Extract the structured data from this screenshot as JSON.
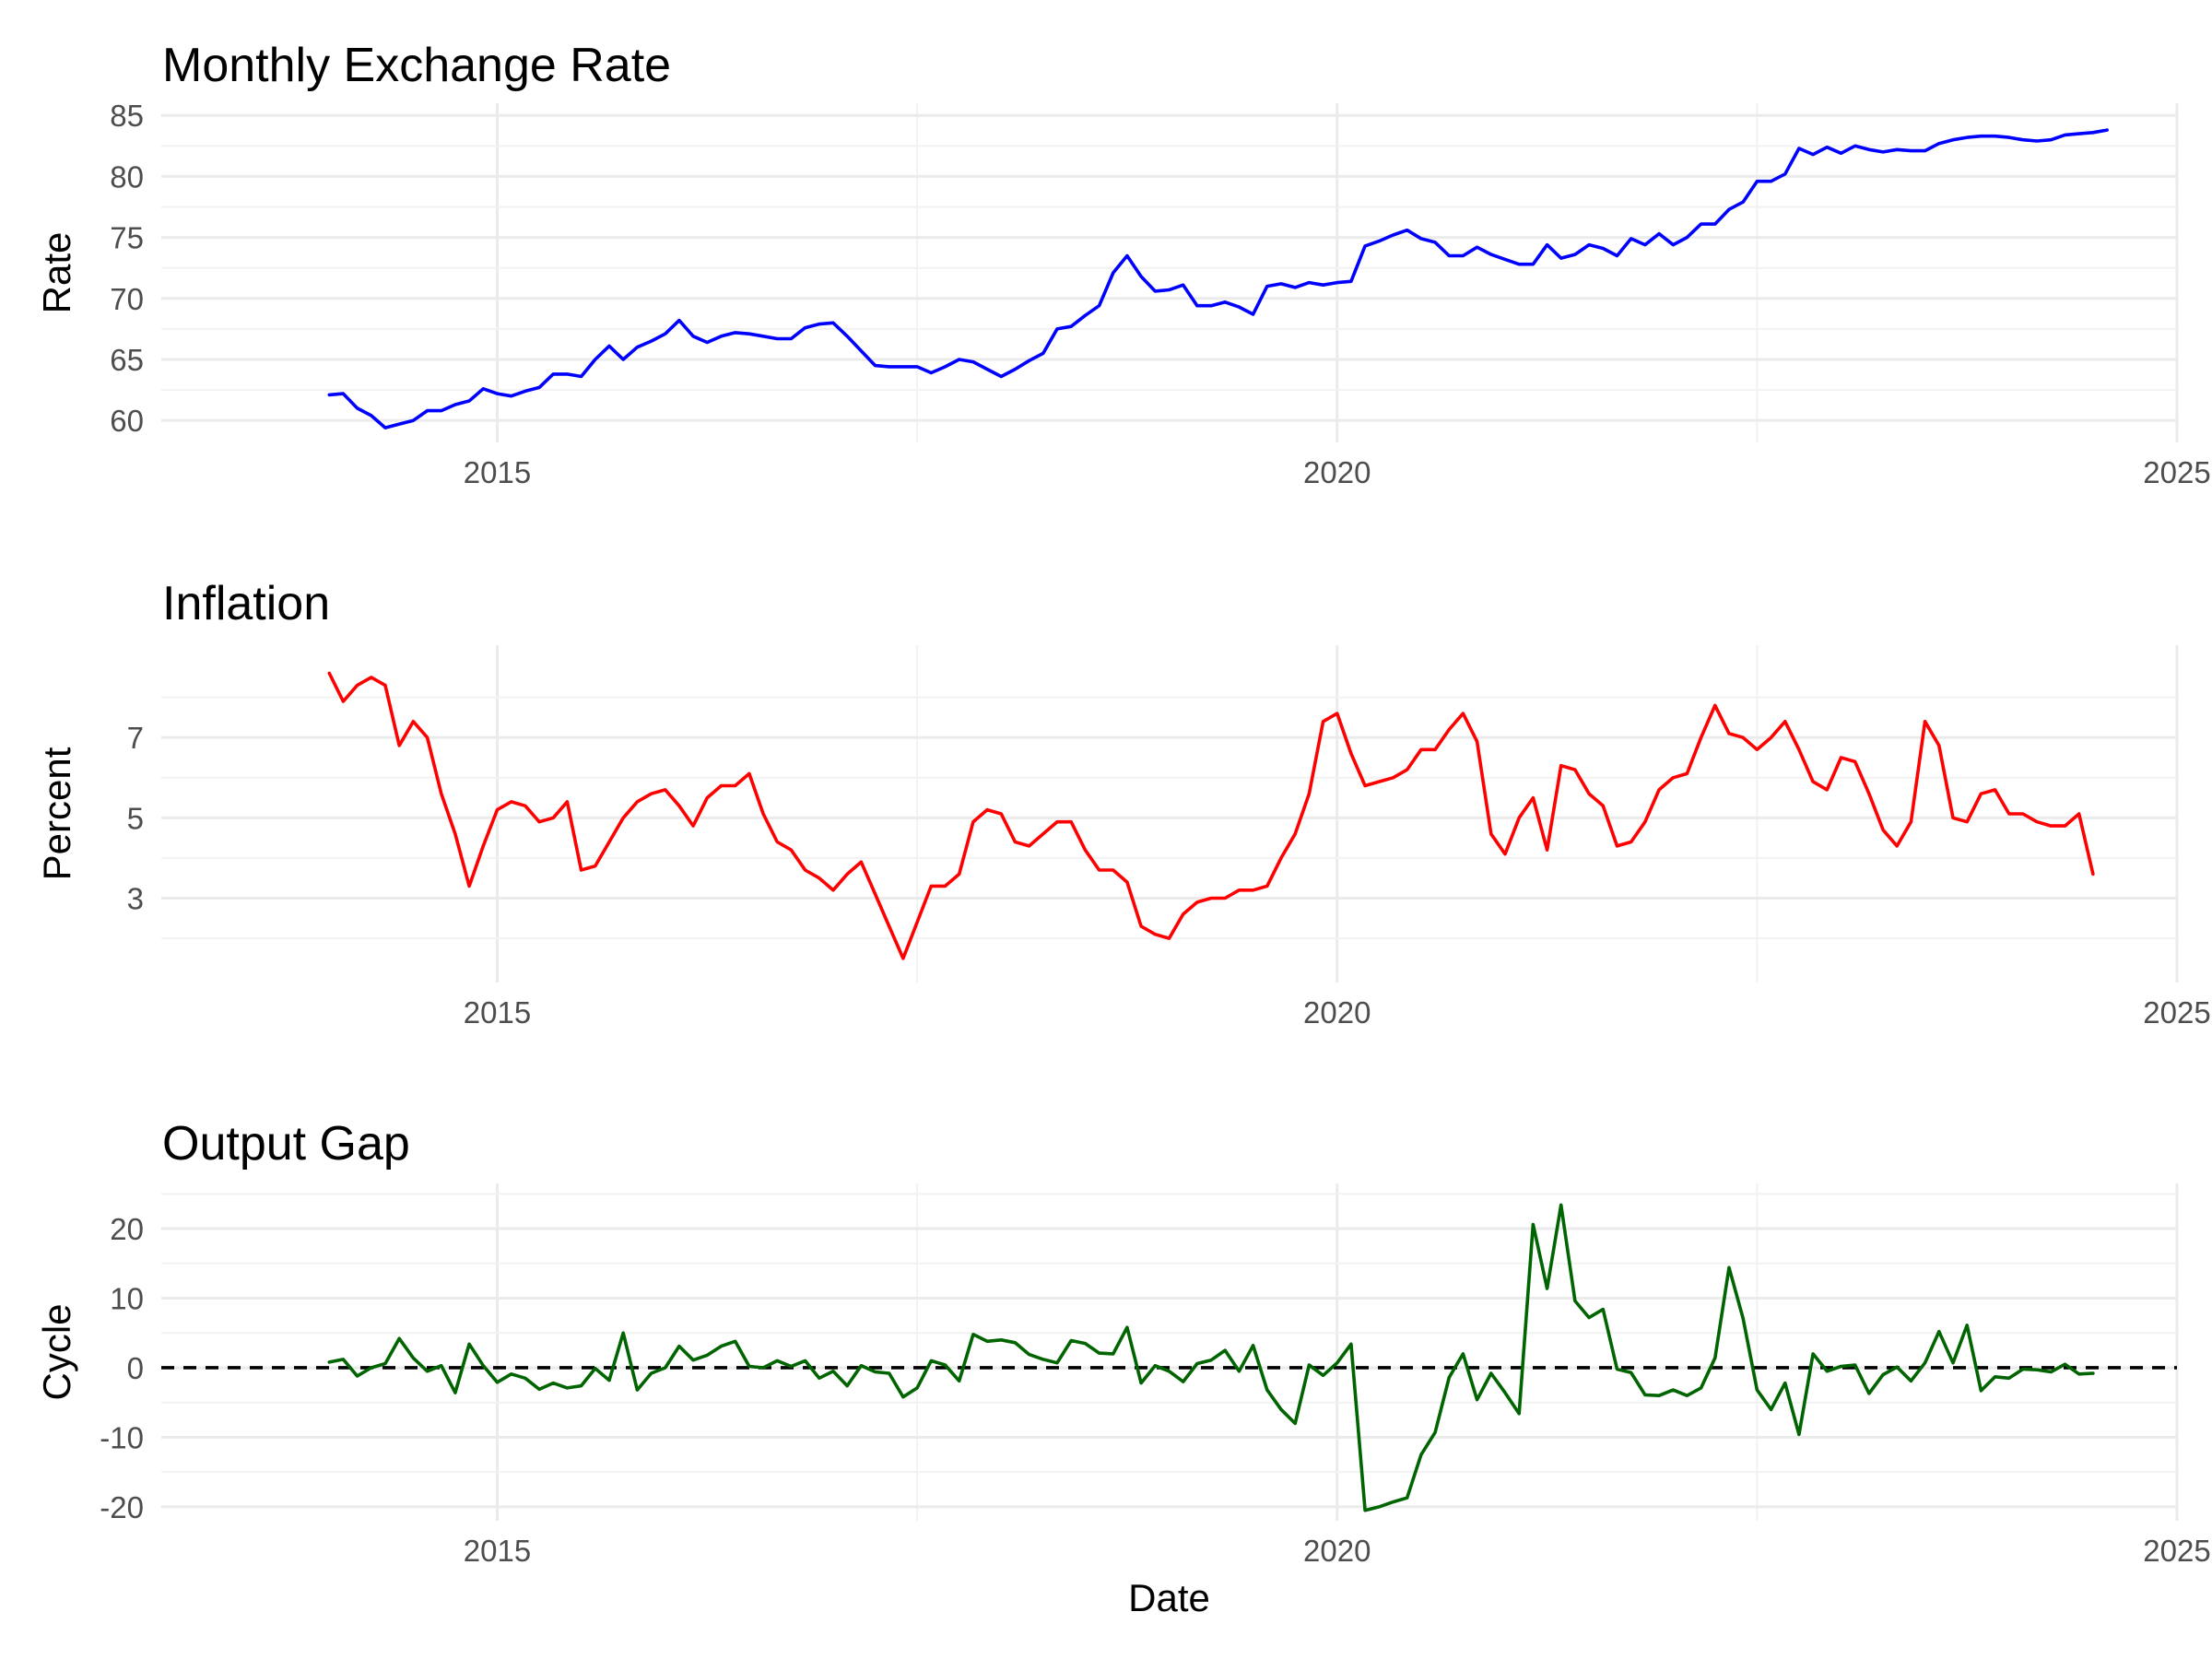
{
  "chart_data": [
    {
      "type": "line",
      "title": "Monthly Exchange Rate",
      "xlabel": "",
      "ylabel": "Rate",
      "xlim": [
        "2013-01-01",
        "2025-01-01"
      ],
      "ylim": [
        58.2,
        86
      ],
      "x_ticks": [
        "2015",
        "2020",
        "2025"
      ],
      "y_ticks": [
        60,
        65,
        70,
        75,
        80,
        85
      ],
      "grid": true,
      "color": "#0000ff",
      "series": [
        {
          "x_start": "2014-01",
          "x_step": "month",
          "values": [
            62.1,
            62.2,
            61.0,
            60.4,
            59.4,
            59.7,
            60.0,
            60.8,
            60.8,
            61.3,
            61.6,
            62.6,
            62.2,
            62.0,
            62.4,
            62.7,
            63.8,
            63.8,
            63.6,
            65.0,
            66.1,
            65.0,
            66.0,
            66.5,
            67.1,
            68.2,
            66.9,
            66.4,
            66.9,
            67.2,
            67.1,
            66.9,
            66.7,
            66.7,
            67.6,
            67.9,
            68.0,
            66.9,
            65.7,
            64.5,
            64.4,
            64.4,
            64.4,
            63.9,
            64.4,
            65.0,
            64.8,
            64.2,
            63.6,
            64.2,
            64.9,
            65.5,
            67.5,
            67.7,
            68.6,
            69.4,
            72.1,
            73.5,
            71.8,
            70.6,
            70.7,
            71.1,
            69.4,
            69.4,
            69.7,
            69.3,
            68.7,
            71.0,
            71.2,
            70.9,
            71.3,
            71.1,
            71.3,
            71.4,
            74.3,
            74.7,
            75.2,
            75.6,
            74.9,
            74.6,
            73.5,
            73.5,
            74.2,
            73.6,
            73.2,
            72.8,
            72.8,
            74.4,
            73.3,
            73.6,
            74.4,
            74.1,
            73.5,
            74.9,
            74.4,
            75.3,
            74.4,
            75.0,
            76.1,
            76.1,
            77.3,
            77.9,
            79.6,
            79.6,
            80.2,
            82.3,
            81.8,
            82.4,
            81.9,
            82.5,
            82.2,
            82.0,
            82.2,
            82.1,
            82.1,
            82.7,
            83.0,
            83.2,
            83.3,
            83.3,
            83.2,
            83.0,
            82.9,
            83.0,
            83.4,
            83.5,
            83.6,
            83.8
          ]
        }
      ]
    },
    {
      "type": "line",
      "title": "Inflation",
      "xlabel": "",
      "ylabel": "Percent",
      "xlim": [
        "2013-01-01",
        "2025-01-01"
      ],
      "ylim": [
        0.9,
        9.3
      ],
      "x_ticks": [
        "2015",
        "2020",
        "2025"
      ],
      "y_ticks": [
        3,
        5,
        7
      ],
      "grid": true,
      "color": "#ff0000",
      "series": [
        {
          "x_start": "2014-01",
          "x_step": "month",
          "values": [
            8.6,
            7.9,
            8.3,
            8.5,
            8.3,
            6.8,
            7.4,
            7.0,
            5.6,
            4.6,
            3.3,
            4.3,
            5.2,
            5.4,
            5.3,
            4.9,
            5.0,
            5.4,
            3.7,
            3.8,
            4.4,
            5.0,
            5.4,
            5.6,
            5.7,
            5.3,
            4.8,
            5.5,
            5.8,
            5.8,
            6.1,
            5.1,
            4.4,
            4.2,
            3.7,
            3.5,
            3.2,
            3.6,
            3.9,
            3.1,
            2.3,
            1.5,
            2.4,
            3.3,
            3.3,
            3.6,
            4.9,
            5.2,
            5.1,
            4.4,
            4.3,
            4.6,
            4.9,
            4.9,
            4.2,
            3.7,
            3.7,
            3.4,
            2.3,
            2.1,
            2.0,
            2.6,
            2.9,
            3.0,
            3.0,
            3.2,
            3.2,
            3.3,
            4.0,
            4.6,
            5.6,
            7.4,
            7.6,
            6.6,
            5.8,
            5.9,
            6.0,
            6.2,
            6.7,
            6.7,
            7.2,
            7.6,
            6.9,
            4.6,
            4.1,
            5.0,
            5.5,
            4.2,
            6.3,
            6.2,
            5.6,
            5.3,
            4.3,
            4.4,
            4.9,
            5.7,
            6.0,
            6.1,
            7.0,
            7.8,
            7.1,
            7.0,
            6.7,
            7.0,
            7.4,
            6.7,
            5.9,
            5.7,
            6.5,
            6.4,
            5.6,
            4.7,
            4.3,
            4.9,
            7.4,
            6.8,
            5.0,
            4.9,
            5.6,
            5.7,
            5.1,
            5.1,
            4.9,
            4.8,
            4.8,
            5.1,
            3.6
          ]
        }
      ]
    },
    {
      "type": "line",
      "title": "Output Gap",
      "xlabel": "Date",
      "ylabel": "Cycle",
      "xlim": [
        "2013-01-01",
        "2025-01-01"
      ],
      "ylim": [
        -22,
        26.5
      ],
      "x_ticks": [
        "2015",
        "2020",
        "2025"
      ],
      "y_ticks": [
        -20,
        -10,
        0,
        10,
        20
      ],
      "grid": true,
      "color": "#006400",
      "reference_line": {
        "y": 0,
        "style": "dashed",
        "color": "#000000"
      },
      "series": [
        {
          "x_start": "2014-01",
          "x_step": "month",
          "values": [
            0.8,
            1.2,
            -1.2,
            0.0,
            0.6,
            4.2,
            1.4,
            -0.5,
            0.3,
            -3.6,
            3.4,
            0.3,
            -2.1,
            -0.9,
            -1.5,
            -3.1,
            -2.2,
            -2.9,
            -2.6,
            -0.1,
            -1.8,
            5.0,
            -3.2,
            -0.8,
            0.0,
            3.1,
            1.1,
            1.8,
            3.1,
            3.8,
            0.2,
            0.0,
            1.0,
            0.2,
            1.0,
            -1.5,
            -0.5,
            -2.6,
            0.3,
            -0.6,
            -0.8,
            -4.2,
            -2.9,
            1.0,
            0.4,
            -1.9,
            4.8,
            3.8,
            4.0,
            3.6,
            1.9,
            1.2,
            0.7,
            3.9,
            3.5,
            2.1,
            2.0,
            5.8,
            -2.2,
            0.3,
            -0.5,
            -2.0,
            0.6,
            1.1,
            2.5,
            -0.5,
            3.2,
            -3.2,
            -6.0,
            -8.0,
            0.4,
            -1.1,
            0.7,
            3.4,
            -20.5,
            -20.0,
            -19.3,
            -18.7,
            -12.5,
            -9.3,
            -1.4,
            2.0,
            -4.6,
            -0.8,
            -3.6,
            -6.6,
            20.6,
            11.4,
            23.4,
            9.6,
            7.2,
            8.4,
            -0.2,
            -0.7,
            -3.9,
            -4.0,
            -3.2,
            -4.0,
            -2.9,
            1.4,
            14.4,
            7.1,
            -3.2,
            -6.0,
            -2.2,
            -9.6,
            2.0,
            -0.5,
            0.2,
            0.4,
            -3.7,
            -1.0,
            0.1,
            -1.9,
            0.7,
            5.2,
            0.7,
            6.1,
            -3.3,
            -1.3,
            -1.5,
            -0.2,
            -0.3,
            -0.6,
            0.5,
            -0.9,
            -0.8
          ]
        }
      ]
    }
  ]
}
